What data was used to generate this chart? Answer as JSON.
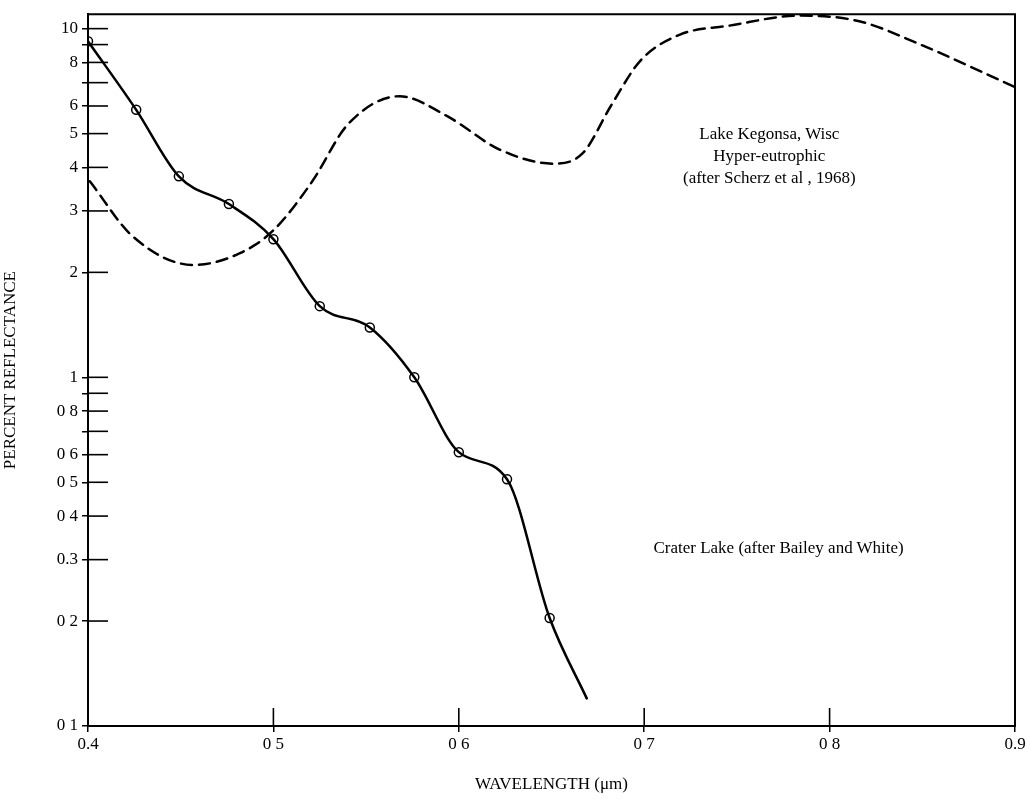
{
  "chart_data": {
    "type": "line",
    "xlabel": "WAVELENGTH (μm)",
    "ylabel": "PERCENT REFLECTANCE",
    "log": "y",
    "grid": false,
    "legend": false,
    "xlim": [
      0.4,
      0.9
    ],
    "xticks": [
      0.4,
      {
        "value": 0.5,
        "label": "0 5"
      },
      {
        "value": 0.6,
        "label": "0 6"
      },
      {
        "value": 0.7,
        "label": "0 7"
      },
      {
        "value": 0.8,
        "label": "0 8"
      },
      0.9
    ],
    "ylim": [
      0.1,
      11
    ],
    "yticks": [
      {
        "value": 0.1,
        "label": "0 1"
      },
      {
        "value": 0.2,
        "label": "0 2"
      },
      0.3,
      {
        "value": 0.4,
        "label": "0 4"
      },
      {
        "value": 0.5,
        "label": "0 5"
      },
      {
        "value": 0.6,
        "label": "0 6"
      },
      {
        "value": 0.7,
        "label": null
      },
      {
        "value": 0.8,
        "label": "0 8"
      },
      {
        "value": 0.9,
        "label": null
      },
      1,
      2,
      3,
      4,
      5,
      6,
      {
        "value": 7,
        "label": null
      },
      8,
      {
        "value": 9,
        "label": null
      },
      10
    ],
    "series": [
      {
        "type": "line",
        "line_style": "dashed",
        "marker": "none",
        "color": "#000000",
        "x": [
          0.401,
          0.424,
          0.457,
          0.482,
          0.5,
          0.521,
          0.54,
          0.568,
          0.594,
          0.622,
          0.651,
          0.667,
          0.682,
          0.698,
          0.719,
          0.746,
          0.784,
          0.816,
          0.849,
          0.9
        ],
        "values": [
          3.65,
          2.54,
          2.1,
          2.27,
          2.64,
          3.65,
          5.3,
          6.4,
          5.6,
          4.5,
          4.1,
          4.4,
          6.0,
          8.1,
          9.6,
          10.2,
          10.9,
          10.5,
          9.0,
          6.8
        ]
      },
      {
        "type": "line",
        "line_style": "solid",
        "marker": "none",
        "color": "#000000",
        "x": [
          0.4,
          0.426,
          0.449,
          0.476,
          0.5,
          0.525,
          0.552,
          0.576,
          0.6,
          0.626,
          0.649,
          0.669
        ],
        "values": [
          9.2,
          5.85,
          3.77,
          3.14,
          2.49,
          1.6,
          1.39,
          1.0,
          0.61,
          0.51,
          0.204,
          0.12
        ]
      },
      {
        "type": "scatter",
        "marker": "circle",
        "color": "#000000",
        "x": [
          0.4,
          0.426,
          0.449,
          0.476,
          0.5,
          0.525,
          0.552,
          0.576,
          0.6,
          0.626,
          0.649
        ],
        "values": [
          9.2,
          5.85,
          3.77,
          3.14,
          2.49,
          1.6,
          1.39,
          1.0,
          0.61,
          0.51,
          0.204
        ]
      }
    ],
    "annotations": [
      "Lake Kegonsa, Wisc\nHyper-eutrophic\n(after Scherz et al , 1968)",
      "Crater Lake (after Bailey and White)"
    ]
  }
}
